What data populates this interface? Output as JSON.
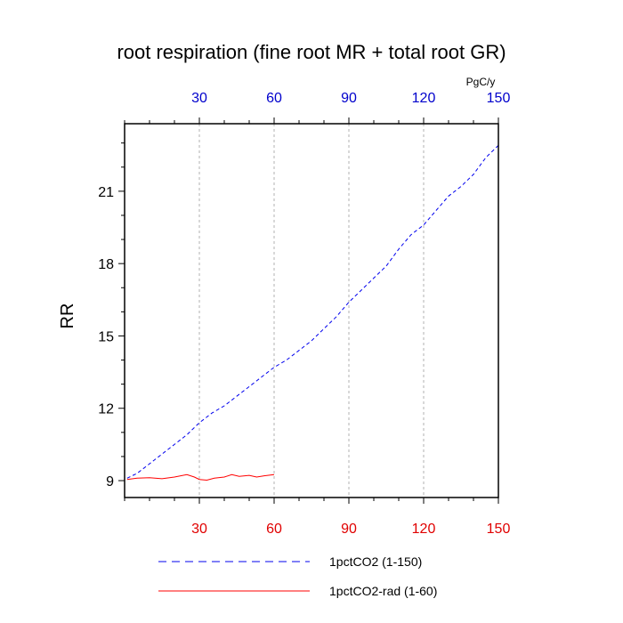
{
  "chart_data": {
    "type": "line",
    "title": "root respiration (fine root MR + total root GR)",
    "ylabel": "RR",
    "top_axis_units": "PgC/y",
    "xlim": [
      0,
      150
    ],
    "ylim": [
      8.3,
      23.8
    ],
    "y_ticks": [
      9,
      12,
      15,
      18,
      21
    ],
    "x_ticks": [
      30,
      60,
      90,
      120,
      150
    ],
    "top_ticks": [
      30,
      60,
      90,
      120,
      150
    ],
    "grid": "vertical dashed at x ticks",
    "legend_position": "bottom",
    "colors": {
      "top_axis": "#0000cc",
      "bottom_axis": "#e00000",
      "series1": "#0000ee",
      "series2": "#ff0000"
    },
    "series": [
      {
        "name": "1pctCO2 (1-150)",
        "style": "dashed",
        "color": "#0000ee",
        "x": [
          1,
          5,
          10,
          15,
          20,
          25,
          30,
          35,
          40,
          45,
          50,
          55,
          60,
          65,
          70,
          75,
          80,
          85,
          90,
          95,
          100,
          105,
          110,
          115,
          120,
          125,
          130,
          135,
          140,
          145,
          150
        ],
        "values": [
          9.1,
          9.3,
          9.7,
          10.1,
          10.5,
          10.9,
          11.4,
          11.8,
          12.1,
          12.5,
          12.9,
          13.3,
          13.7,
          14.0,
          14.4,
          14.8,
          15.3,
          15.8,
          16.4,
          16.9,
          17.4,
          17.9,
          18.6,
          19.2,
          19.6,
          20.2,
          20.8,
          21.2,
          21.7,
          22.4,
          22.9
        ]
      },
      {
        "name": "1pctCO2-rad (1-60)",
        "style": "solid",
        "color": "#ff0000",
        "x": [
          1,
          5,
          10,
          15,
          20,
          25,
          28,
          30,
          33,
          36,
          40,
          43,
          46,
          50,
          53,
          56,
          60
        ],
        "values": [
          9.05,
          9.1,
          9.12,
          9.08,
          9.15,
          9.25,
          9.15,
          9.05,
          9.02,
          9.1,
          9.15,
          9.25,
          9.18,
          9.22,
          9.15,
          9.2,
          9.25
        ]
      }
    ]
  }
}
